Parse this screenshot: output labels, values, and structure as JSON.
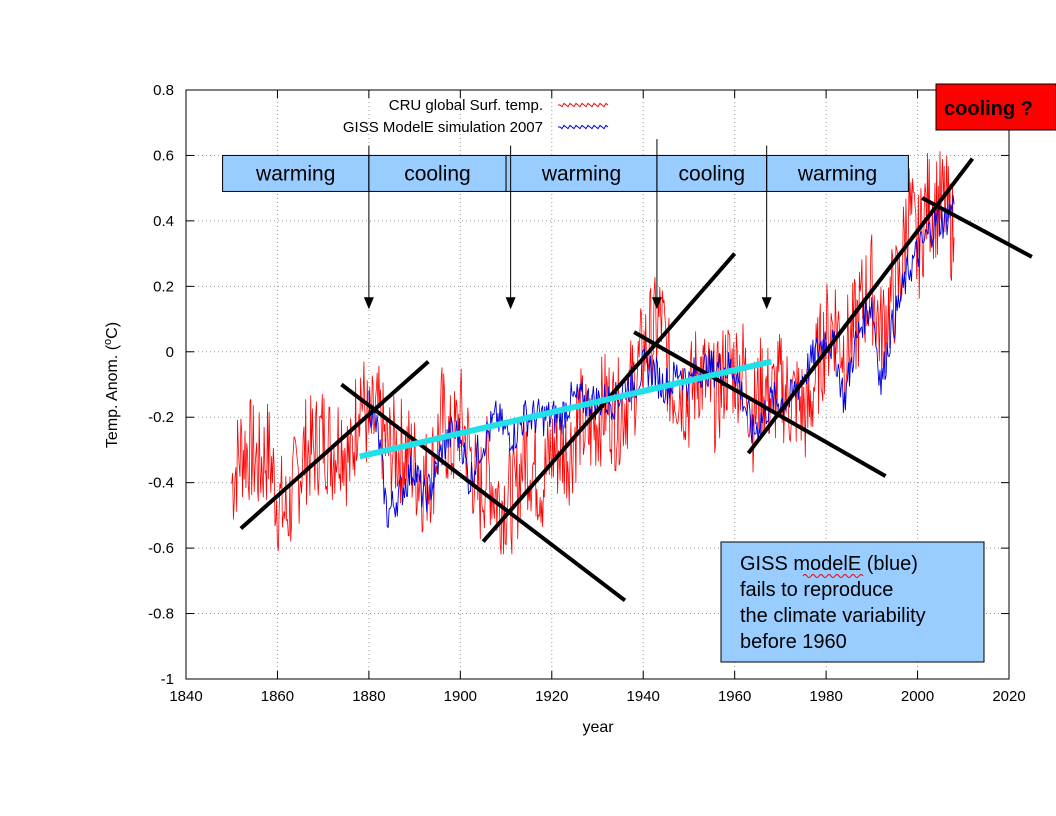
{
  "colors": {
    "cru": "#ff0000",
    "giss": "#0000dd",
    "trend_black": "#000000",
    "trend_cyan": "#22e0e8",
    "phase_box": "#99ccff",
    "note_box": "#99ccff",
    "cooling_box": "#ff0000",
    "grid": "#999999"
  },
  "annotations": {
    "cooling_question": "cooling ?",
    "note_line1_a": "GISS ",
    "note_line1_b": "modelE",
    "note_line1_c": " (blue)",
    "note_line2": "fails to reproduce",
    "note_line3": "the climate variability",
    "note_line4": "before 1960"
  },
  "chart_data": {
    "type": "line",
    "title": "",
    "xlabel": "year",
    "ylabel_prefix": "Temp. Anom. (",
    "ylabel_super": "o",
    "ylabel_suffix": "C)",
    "xlim": [
      1840,
      2020
    ],
    "ylim": [
      -1,
      0.8
    ],
    "xticks": [
      1840,
      1860,
      1880,
      1900,
      1920,
      1940,
      1960,
      1980,
      2000,
      2020
    ],
    "yticks": [
      -1,
      -0.8,
      -0.6,
      -0.4,
      -0.2,
      0,
      0.2,
      0.4,
      0.6,
      0.8
    ],
    "ytick_labels": [
      "-1",
      "-0.8",
      "-0.6",
      "-0.4",
      "-0.2",
      "0",
      "0.2",
      "0.4",
      "0.6",
      "0.8"
    ],
    "grid": true,
    "legend_position": "top-center",
    "series": [
      {
        "name": "CRU global Surf. temp.",
        "color": "#ff0000",
        "x": [
          1850,
          1852,
          1854,
          1856,
          1858,
          1860,
          1862,
          1864,
          1866,
          1868,
          1870,
          1872,
          1874,
          1876,
          1878,
          1880,
          1882,
          1884,
          1886,
          1888,
          1890,
          1892,
          1894,
          1896,
          1898,
          1900,
          1902,
          1904,
          1906,
          1908,
          1910,
          1912,
          1914,
          1916,
          1918,
          1920,
          1922,
          1924,
          1926,
          1928,
          1930,
          1932,
          1934,
          1936,
          1938,
          1940,
          1942,
          1944,
          1946,
          1948,
          1950,
          1952,
          1954,
          1956,
          1958,
          1960,
          1962,
          1964,
          1966,
          1968,
          1970,
          1972,
          1974,
          1976,
          1978,
          1980,
          1982,
          1984,
          1986,
          1988,
          1990,
          1992,
          1994,
          1996,
          1998,
          2000,
          2002,
          2004,
          2006,
          2008
        ],
        "y": [
          -0.4,
          -0.3,
          -0.3,
          -0.35,
          -0.3,
          -0.45,
          -0.5,
          -0.4,
          -0.3,
          -0.3,
          -0.25,
          -0.3,
          -0.25,
          -0.35,
          -0.1,
          -0.25,
          -0.2,
          -0.3,
          -0.3,
          -0.3,
          -0.35,
          -0.4,
          -0.35,
          -0.2,
          -0.3,
          -0.2,
          -0.3,
          -0.45,
          -0.35,
          -0.45,
          -0.45,
          -0.45,
          -0.3,
          -0.35,
          -0.4,
          -0.3,
          -0.3,
          -0.3,
          -0.2,
          -0.25,
          -0.2,
          -0.15,
          -0.2,
          -0.15,
          -0.1,
          0.0,
          0.05,
          0.1,
          -0.1,
          -0.1,
          -0.15,
          -0.05,
          -0.1,
          -0.15,
          -0.05,
          -0.05,
          -0.05,
          -0.2,
          -0.1,
          -0.15,
          -0.1,
          -0.15,
          -0.15,
          -0.2,
          -0.05,
          0.05,
          0.1,
          0.0,
          0.05,
          0.15,
          0.2,
          0.05,
          0.15,
          0.2,
          0.45,
          0.3,
          0.45,
          0.45,
          0.45,
          0.35
        ]
      },
      {
        "name": "GISS ModelE simulation 2007",
        "color": "#0000dd",
        "x": [
          1880,
          1882,
          1884,
          1886,
          1888,
          1890,
          1892,
          1894,
          1896,
          1898,
          1900,
          1902,
          1904,
          1906,
          1908,
          1910,
          1912,
          1914,
          1916,
          1918,
          1920,
          1922,
          1924,
          1926,
          1928,
          1930,
          1932,
          1934,
          1936,
          1938,
          1940,
          1942,
          1944,
          1946,
          1948,
          1950,
          1952,
          1954,
          1956,
          1958,
          1960,
          1962,
          1964,
          1966,
          1968,
          1970,
          1972,
          1974,
          1976,
          1978,
          1980,
          1982,
          1984,
          1986,
          1988,
          1990,
          1992,
          1994,
          1996,
          1998,
          2000,
          2002,
          2004,
          2006,
          2008
        ],
        "y": [
          -0.15,
          -0.25,
          -0.5,
          -0.45,
          -0.4,
          -0.35,
          -0.45,
          -0.4,
          -0.3,
          -0.25,
          -0.25,
          -0.4,
          -0.3,
          -0.25,
          -0.2,
          -0.25,
          -0.25,
          -0.2,
          -0.2,
          -0.2,
          -0.2,
          -0.2,
          -0.15,
          -0.15,
          -0.15,
          -0.15,
          -0.15,
          -0.15,
          -0.1,
          -0.1,
          -0.05,
          -0.05,
          -0.1,
          -0.1,
          -0.05,
          -0.1,
          -0.05,
          -0.05,
          -0.05,
          -0.05,
          -0.05,
          -0.15,
          -0.25,
          -0.2,
          -0.15,
          -0.15,
          -0.15,
          -0.1,
          -0.05,
          0.0,
          0.05,
          0.0,
          -0.15,
          0.0,
          0.1,
          0.15,
          -0.1,
          0.05,
          0.15,
          0.25,
          0.3,
          0.35,
          0.4,
          0.4,
          0.45
        ]
      }
    ],
    "trend_lines": [
      {
        "name": "warming-trend-1850-1893",
        "color": "black",
        "x": [
          1852,
          1893
        ],
        "y": [
          -0.54,
          -0.03
        ]
      },
      {
        "name": "cooling-trend-1874-1936",
        "color": "black",
        "x": [
          1874,
          1936
        ],
        "y": [
          -0.1,
          -0.76
        ]
      },
      {
        "name": "warming-trend-1905-1960",
        "color": "black",
        "x": [
          1905,
          1960
        ],
        "y": [
          -0.58,
          0.3
        ]
      },
      {
        "name": "cooling-trend-1938-1993",
        "color": "black",
        "x": [
          1938,
          1993
        ],
        "y": [
          0.06,
          -0.38
        ]
      },
      {
        "name": "warming-trend-1963-2012",
        "color": "black",
        "x": [
          1963,
          2012
        ],
        "y": [
          -0.31,
          0.59
        ]
      },
      {
        "name": "cooling-trend-2001-2025",
        "color": "black",
        "x": [
          2001,
          2025
        ],
        "y": [
          0.47,
          0.29
        ]
      },
      {
        "name": "giss-trend-1878-1968",
        "color": "cyan",
        "x": [
          1878,
          1968
        ],
        "y": [
          -0.32,
          -0.03
        ]
      }
    ],
    "phase_bar": {
      "labels": [
        "warming",
        "cooling",
        "warming",
        "cooling",
        "warming"
      ],
      "boundaries": [
        1848,
        1880,
        1910,
        1943,
        1967,
        1998
      ],
      "y_range": [
        0.49,
        0.6
      ]
    },
    "phase_arrows": [
      {
        "x": 1880,
        "y_from": 0.63,
        "y_to": 0.13
      },
      {
        "x": 1911,
        "y_from": 0.63,
        "y_to": 0.13
      },
      {
        "x": 1943,
        "y_from": 0.65,
        "y_to": 0.13
      },
      {
        "x": 1967,
        "y_from": 0.63,
        "y_to": 0.13
      }
    ]
  }
}
